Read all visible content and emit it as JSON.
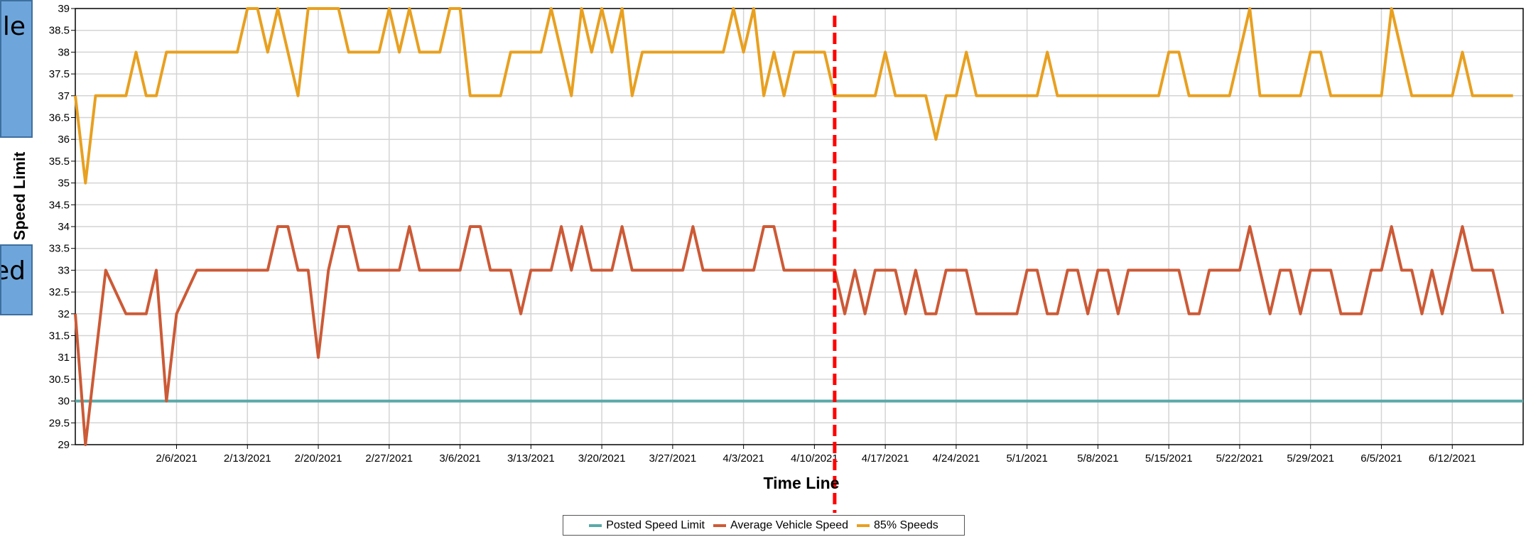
{
  "callouts": [
    {
      "text": "le"
    },
    {
      "text": "ed"
    }
  ],
  "chart_data": {
    "type": "line",
    "title": "",
    "xlabel": "Time Line",
    "ylabel": "Speed Limit",
    "ylim": [
      29,
      39
    ],
    "ytick_step": 0.5,
    "ytick_labels": [
      "29",
      "29.5",
      "30",
      "30.5",
      "31",
      "31.5",
      "32",
      "32.5",
      "33",
      "33.5",
      "34",
      "34.5",
      "35",
      "35.5",
      "36",
      "36.5",
      "37",
      "37.5",
      "38",
      "38.5",
      "39"
    ],
    "x_start": "2021-01-27",
    "x_end": "2021-06-19",
    "xtick_labels": [
      "2/6/2021",
      "2/13/2021",
      "2/20/2021",
      "2/27/2021",
      "3/6/2021",
      "3/13/2021",
      "3/20/2021",
      "3/27/2021",
      "4/3/2021",
      "4/10/2021",
      "4/17/2021",
      "4/24/2021",
      "5/1/2021",
      "5/8/2021",
      "5/15/2021",
      "5/22/2021",
      "5/29/2021",
      "6/5/2021",
      "6/12/2021"
    ],
    "grid": true,
    "legend_position": "bottom-center",
    "marker_line": {
      "date": "2021-04-12",
      "color": "#ff0000",
      "style": "dashed"
    },
    "series": [
      {
        "name": "Posted Speed Limit",
        "color": "#5aa9a8",
        "points": [
          [
            "2021-01-27",
            30
          ],
          [
            "2021-06-19",
            30
          ]
        ]
      },
      {
        "name": "Average Vehicle Speed",
        "color": "#cc5a36",
        "points": [
          [
            "2021-01-27",
            32
          ],
          [
            "2021-01-28",
            29
          ],
          [
            "2021-01-29",
            31
          ],
          [
            "2021-01-30",
            33
          ],
          [
            "2021-01-31",
            32.5
          ],
          [
            "2021-02-01",
            32
          ],
          [
            "2021-02-02",
            32
          ],
          [
            "2021-02-03",
            32
          ],
          [
            "2021-02-04",
            33
          ],
          [
            "2021-02-05",
            30
          ],
          [
            "2021-02-06",
            32
          ],
          [
            "2021-02-08",
            33
          ],
          [
            "2021-02-15",
            33
          ],
          [
            "2021-02-16",
            34
          ],
          [
            "2021-02-17",
            34
          ],
          [
            "2021-02-18",
            33
          ],
          [
            "2021-02-19",
            33
          ],
          [
            "2021-02-20",
            31
          ],
          [
            "2021-02-21",
            33
          ],
          [
            "2021-02-22",
            34
          ],
          [
            "2021-02-23",
            34
          ],
          [
            "2021-02-24",
            33
          ],
          [
            "2021-02-28",
            33
          ],
          [
            "2021-03-01",
            34
          ],
          [
            "2021-03-02",
            33
          ],
          [
            "2021-03-06",
            33
          ],
          [
            "2021-03-07",
            34
          ],
          [
            "2021-03-08",
            34
          ],
          [
            "2021-03-09",
            33
          ],
          [
            "2021-03-11",
            33
          ],
          [
            "2021-03-12",
            32
          ],
          [
            "2021-03-13",
            33
          ],
          [
            "2021-03-15",
            33
          ],
          [
            "2021-03-16",
            34
          ],
          [
            "2021-03-17",
            33
          ],
          [
            "2021-03-18",
            34
          ],
          [
            "2021-03-19",
            33
          ],
          [
            "2021-03-21",
            33
          ],
          [
            "2021-03-22",
            34
          ],
          [
            "2021-03-23",
            33
          ],
          [
            "2021-03-28",
            33
          ],
          [
            "2021-03-29",
            34
          ],
          [
            "2021-03-30",
            33
          ],
          [
            "2021-04-04",
            33
          ],
          [
            "2021-04-05",
            34
          ],
          [
            "2021-04-06",
            34
          ],
          [
            "2021-04-07",
            33
          ],
          [
            "2021-04-12",
            33
          ],
          [
            "2021-04-13",
            32
          ],
          [
            "2021-04-14",
            33
          ],
          [
            "2021-04-15",
            32
          ],
          [
            "2021-04-16",
            33
          ],
          [
            "2021-04-17",
            33
          ],
          [
            "2021-04-18",
            33
          ],
          [
            "2021-04-19",
            32
          ],
          [
            "2021-04-20",
            33
          ],
          [
            "2021-04-21",
            32
          ],
          [
            "2021-04-22",
            32
          ],
          [
            "2021-04-23",
            33
          ],
          [
            "2021-04-24",
            33
          ],
          [
            "2021-04-25",
            33
          ],
          [
            "2021-04-26",
            32
          ],
          [
            "2021-04-30",
            32
          ],
          [
            "2021-05-01",
            33
          ],
          [
            "2021-05-02",
            33
          ],
          [
            "2021-05-03",
            32
          ],
          [
            "2021-05-04",
            32
          ],
          [
            "2021-05-05",
            33
          ],
          [
            "2021-05-06",
            33
          ],
          [
            "2021-05-07",
            32
          ],
          [
            "2021-05-08",
            33
          ],
          [
            "2021-05-09",
            33
          ],
          [
            "2021-05-10",
            32
          ],
          [
            "2021-05-11",
            33
          ],
          [
            "2021-05-16",
            33
          ],
          [
            "2021-05-17",
            32
          ],
          [
            "2021-05-18",
            32
          ],
          [
            "2021-05-19",
            33
          ],
          [
            "2021-05-21",
            33
          ],
          [
            "2021-05-22",
            33
          ],
          [
            "2021-05-23",
            34
          ],
          [
            "2021-05-24",
            33
          ],
          [
            "2021-05-25",
            32
          ],
          [
            "2021-05-26",
            33
          ],
          [
            "2021-05-27",
            33
          ],
          [
            "2021-05-28",
            32
          ],
          [
            "2021-05-29",
            33
          ],
          [
            "2021-05-31",
            33
          ],
          [
            "2021-06-01",
            32
          ],
          [
            "2021-06-02",
            32
          ],
          [
            "2021-06-03",
            32
          ],
          [
            "2021-06-04",
            33
          ],
          [
            "2021-06-05",
            33
          ],
          [
            "2021-06-06",
            34
          ],
          [
            "2021-06-07",
            33
          ],
          [
            "2021-06-08",
            33
          ],
          [
            "2021-06-09",
            32
          ],
          [
            "2021-06-10",
            33
          ],
          [
            "2021-06-11",
            32
          ],
          [
            "2021-06-12",
            33
          ],
          [
            "2021-06-13",
            34
          ],
          [
            "2021-06-14",
            33
          ],
          [
            "2021-06-16",
            33
          ],
          [
            "2021-06-17",
            32
          ]
        ]
      },
      {
        "name": "85% Speeds",
        "color": "#e8a020",
        "points": [
          [
            "2021-01-27",
            37
          ],
          [
            "2021-01-28",
            35
          ],
          [
            "2021-01-29",
            37
          ],
          [
            "2021-01-31",
            37
          ],
          [
            "2021-02-01",
            37
          ],
          [
            "2021-02-02",
            38
          ],
          [
            "2021-02-03",
            37
          ],
          [
            "2021-02-04",
            37
          ],
          [
            "2021-02-05",
            38
          ],
          [
            "2021-02-12",
            38
          ],
          [
            "2021-02-13",
            39
          ],
          [
            "2021-02-14",
            39
          ],
          [
            "2021-02-15",
            38
          ],
          [
            "2021-02-16",
            39
          ],
          [
            "2021-02-17",
            38
          ],
          [
            "2021-02-18",
            37
          ],
          [
            "2021-02-19",
            39
          ],
          [
            "2021-02-21",
            39
          ],
          [
            "2021-02-22",
            39
          ],
          [
            "2021-02-23",
            38
          ],
          [
            "2021-02-26",
            38
          ],
          [
            "2021-02-27",
            39
          ],
          [
            "2021-02-28",
            38
          ],
          [
            "2021-03-01",
            39
          ],
          [
            "2021-03-02",
            38
          ],
          [
            "2021-03-04",
            38
          ],
          [
            "2021-03-05",
            39
          ],
          [
            "2021-03-06",
            39
          ],
          [
            "2021-03-07",
            37
          ],
          [
            "2021-03-10",
            37
          ],
          [
            "2021-03-11",
            38
          ],
          [
            "2021-03-14",
            38
          ],
          [
            "2021-03-15",
            39
          ],
          [
            "2021-03-16",
            38
          ],
          [
            "2021-03-17",
            37
          ],
          [
            "2021-03-18",
            39
          ],
          [
            "2021-03-19",
            38
          ],
          [
            "2021-03-20",
            39
          ],
          [
            "2021-03-21",
            38
          ],
          [
            "2021-03-22",
            39
          ],
          [
            "2021-03-23",
            37
          ],
          [
            "2021-03-24",
            38
          ],
          [
            "2021-04-01",
            38
          ],
          [
            "2021-04-02",
            39
          ],
          [
            "2021-04-03",
            38
          ],
          [
            "2021-04-04",
            39
          ],
          [
            "2021-04-05",
            37
          ],
          [
            "2021-04-06",
            38
          ],
          [
            "2021-04-07",
            37
          ],
          [
            "2021-04-08",
            38
          ],
          [
            "2021-04-11",
            38
          ],
          [
            "2021-04-12",
            37
          ],
          [
            "2021-04-16",
            37
          ],
          [
            "2021-04-17",
            38
          ],
          [
            "2021-04-18",
            37
          ],
          [
            "2021-04-21",
            37
          ],
          [
            "2021-04-22",
            36
          ],
          [
            "2021-04-23",
            37
          ],
          [
            "2021-04-24",
            37
          ],
          [
            "2021-04-25",
            38
          ],
          [
            "2021-04-26",
            37
          ],
          [
            "2021-05-02",
            37
          ],
          [
            "2021-05-03",
            38
          ],
          [
            "2021-05-04",
            37
          ],
          [
            "2021-05-14",
            37
          ],
          [
            "2021-05-15",
            38
          ],
          [
            "2021-05-16",
            38
          ],
          [
            "2021-05-17",
            37
          ],
          [
            "2021-05-21",
            37
          ],
          [
            "2021-05-22",
            38
          ],
          [
            "2021-05-23",
            39
          ],
          [
            "2021-05-24",
            37
          ],
          [
            "2021-05-28",
            37
          ],
          [
            "2021-05-29",
            38
          ],
          [
            "2021-05-30",
            38
          ],
          [
            "2021-05-31",
            37
          ],
          [
            "2021-06-05",
            37
          ],
          [
            "2021-06-06",
            39
          ],
          [
            "2021-06-08",
            37
          ],
          [
            "2021-06-12",
            37
          ],
          [
            "2021-06-13",
            38
          ],
          [
            "2021-06-14",
            37
          ],
          [
            "2021-06-18",
            37
          ]
        ]
      }
    ]
  }
}
